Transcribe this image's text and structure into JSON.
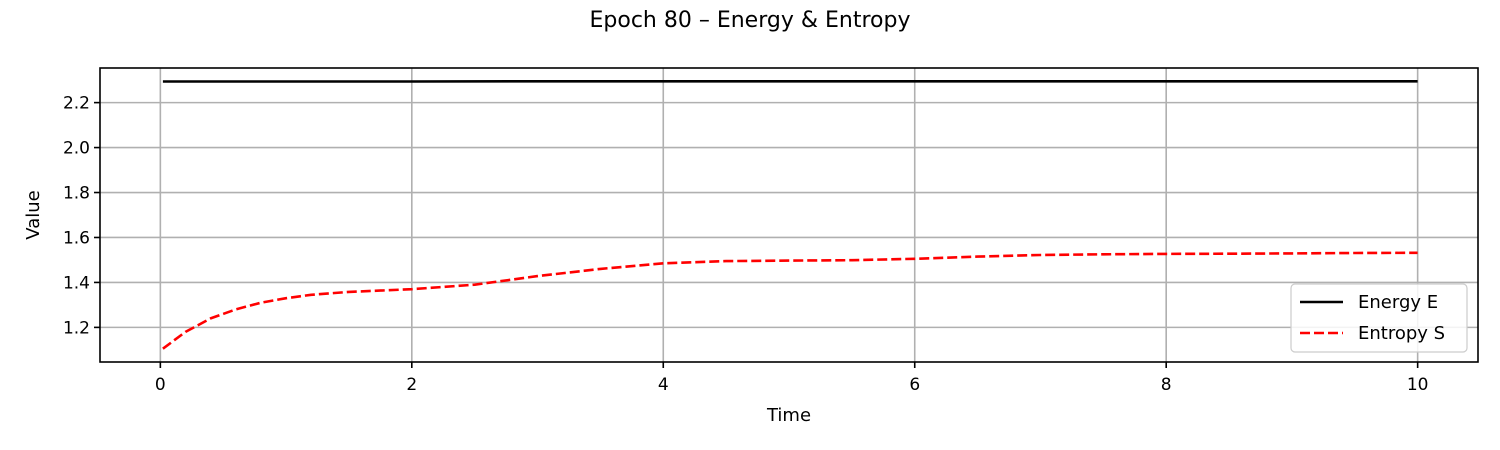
{
  "chart_data": {
    "type": "line",
    "title": "Epoch 80 – Energy & Entropy",
    "xlabel": "Time",
    "ylabel": "Value",
    "xlim": [
      -0.48,
      10.48
    ],
    "ylim": [
      1.046,
      2.354
    ],
    "x_ticks": [
      0,
      2,
      4,
      6,
      8,
      10
    ],
    "y_ticks": [
      1.2,
      1.4,
      1.6,
      1.8,
      2.0,
      2.2
    ],
    "x_tick_labels": [
      "0",
      "2",
      "4",
      "6",
      "8",
      "10"
    ],
    "y_tick_labels": [
      "1.2",
      "1.4",
      "1.6",
      "1.8",
      "2.0",
      "2.2"
    ],
    "grid": true,
    "legend_position": "lower-right",
    "series": [
      {
        "name": "Energy E",
        "color": "#000000",
        "style": "solid",
        "x": [
          0.02,
          1,
          2,
          3,
          4,
          5,
          6,
          7,
          8,
          9,
          10
        ],
        "y": [
          2.294,
          2.294,
          2.294,
          2.295,
          2.295,
          2.295,
          2.295,
          2.295,
          2.295,
          2.295,
          2.295
        ]
      },
      {
        "name": "Entropy S",
        "color": "#ff0000",
        "style": "dashed",
        "x": [
          0.02,
          0.2,
          0.4,
          0.6,
          0.8,
          1.0,
          1.2,
          1.5,
          2.0,
          2.5,
          3.0,
          3.5,
          4.0,
          4.5,
          5.0,
          5.5,
          6.0,
          6.5,
          7.0,
          7.5,
          8.0,
          8.5,
          9.0,
          9.5,
          10.0
        ],
        "y": [
          1.105,
          1.18,
          1.24,
          1.28,
          1.31,
          1.33,
          1.345,
          1.358,
          1.37,
          1.39,
          1.428,
          1.46,
          1.485,
          1.495,
          1.497,
          1.499,
          1.505,
          1.515,
          1.522,
          1.525,
          1.527,
          1.528,
          1.529,
          1.531,
          1.532
        ]
      }
    ]
  }
}
